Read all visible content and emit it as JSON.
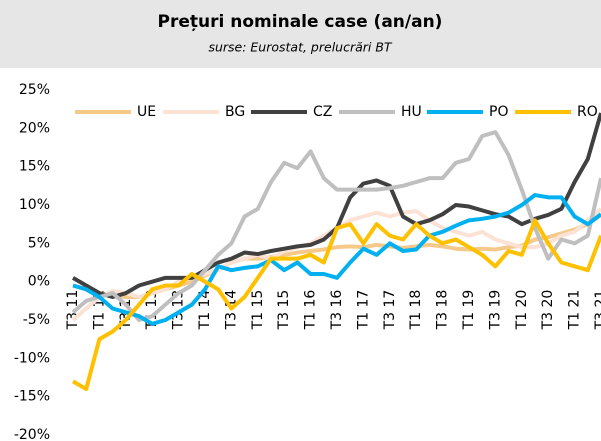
{
  "chart_data": {
    "type": "line",
    "title": "Prețuri nominale case (an/an)",
    "subtitle": "surse: Eurostat, prelucrări BT",
    "categories": [
      "T3 11",
      null,
      "T1 12",
      null,
      "T3 12",
      null,
      "T1 13",
      null,
      "T3 13",
      null,
      "T1 14",
      null,
      "T3 14",
      null,
      "T1 15",
      null,
      "T3 15",
      null,
      "T1 16",
      null,
      "T3 16",
      null,
      "T1 17",
      null,
      "T3 17",
      null,
      "T1 18",
      null,
      "T3 18",
      null,
      "T1 19",
      null,
      "T3 19",
      null,
      "T1 20",
      null,
      "T3 20",
      null,
      "T1 21",
      null,
      "T3 21"
    ],
    "series": [
      {
        "name": "UE",
        "color": "#f5c98a",
        "values": [
          -0.5,
          -1,
          -1.5,
          -1.8,
          -2,
          -2,
          -1.5,
          -1,
          -0.5,
          0,
          0.8,
          1.5,
          2.5,
          3,
          3,
          3.2,
          3.5,
          3.8,
          4,
          4.2,
          4.5,
          4.6,
          4.5,
          4.8,
          4.6,
          4.4,
          4.6,
          4.8,
          4.6,
          4.3,
          4.2,
          4.3,
          4.2,
          4.5,
          4.7,
          5.5,
          5.8,
          6.3,
          6.8,
          7.5,
          8.7
        ]
      },
      {
        "name": "BG",
        "color": "#fbe2d5",
        "values": [
          -5,
          -3.5,
          -2,
          -1.2,
          -1.5,
          -2,
          -1.5,
          -1,
          0,
          0.5,
          1,
          1.5,
          2.5,
          3,
          3.5,
          3,
          4,
          4.5,
          5,
          6,
          7,
          8,
          8.5,
          9,
          8.5,
          9,
          9.2,
          8,
          7,
          6.5,
          6,
          6.5,
          5.5,
          5,
          4.5,
          4.5,
          5,
          6,
          6.5,
          8,
          9.5
        ]
      },
      {
        "name": "CZ",
        "color": "#404040",
        "values": [
          0.5,
          -0.5,
          -1.5,
          -2,
          -1.5,
          -0.5,
          0,
          0.5,
          0.5,
          0.5,
          1.5,
          2.5,
          3,
          3.8,
          3.6,
          4,
          4.3,
          4.6,
          4.8,
          5.5,
          7,
          11,
          12.8,
          13.2,
          12.5,
          8.5,
          7.5,
          8,
          8.8,
          10,
          9.8,
          9.3,
          8.8,
          8.5,
          7.5,
          8.2,
          8.7,
          9.5,
          13,
          16,
          22
        ]
      },
      {
        "name": "HU",
        "color": "#bfbfbf",
        "values": [
          -4,
          -2.5,
          -2,
          -1.5,
          -3,
          -5,
          -4.5,
          -3,
          -1.5,
          -0.5,
          1.5,
          3.5,
          5,
          8.5,
          9.5,
          13,
          15.5,
          14.8,
          17,
          13.5,
          12,
          12,
          12,
          12,
          12.2,
          12.5,
          13,
          13.5,
          13.5,
          15.5,
          16,
          19,
          19.5,
          16.5,
          12,
          7,
          3,
          5.5,
          5,
          6,
          13.5
        ]
      },
      {
        "name": "PO",
        "color": "#00b0f0",
        "values": [
          -0.5,
          -1,
          -2,
          -3.5,
          -4,
          -4.5,
          -5.5,
          -5,
          -4,
          -3,
          -1,
          2,
          1.5,
          1.8,
          2,
          2.8,
          1.5,
          2.5,
          1,
          1,
          0.5,
          2.5,
          4.3,
          3.5,
          5,
          4,
          4.2,
          6,
          6.5,
          7.3,
          8,
          8.2,
          8.5,
          9,
          10,
          11.3,
          11,
          11,
          8.5,
          7.5,
          8.8
        ]
      },
      {
        "name": "RO",
        "color": "#ffc000",
        "values": [
          -13,
          -14,
          -7.5,
          -6.5,
          -5,
          -3,
          -1,
          -0.5,
          -0.5,
          1,
          0,
          -1,
          -3.5,
          -2,
          0.5,
          3,
          3,
          3,
          3.5,
          2.5,
          7,
          7.5,
          5,
          7.5,
          6,
          5.5,
          7.5,
          6,
          5,
          5.5,
          4.5,
          3.5,
          2,
          4,
          3.5,
          8,
          5,
          2.5,
          2,
          1.5,
          6
        ]
      }
    ],
    "ylim": [
      -20,
      25
    ],
    "yticks": [
      {
        "value": -20,
        "label": "-20%"
      },
      {
        "value": -15,
        "label": "-15%"
      },
      {
        "value": -10,
        "label": "-10%"
      },
      {
        "value": -5,
        "label": "-5%"
      },
      {
        "value": 0,
        "label": "0%"
      },
      {
        "value": 5,
        "label": "5%"
      },
      {
        "value": 10,
        "label": "10%"
      },
      {
        "value": 15,
        "label": "15%"
      },
      {
        "value": 20,
        "label": "20%"
      },
      {
        "value": 25,
        "label": "25%"
      }
    ],
    "legend": "top"
  }
}
